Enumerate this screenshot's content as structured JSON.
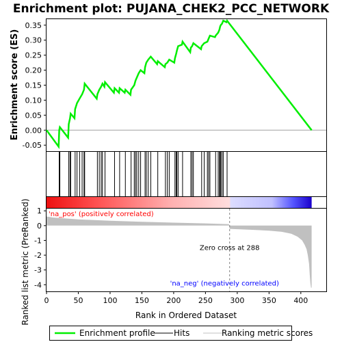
{
  "chart_data": {
    "type": "line",
    "title": "Enrichment plot: PUJANA_CHEK2_PCC_NETWORK",
    "es_panel": {
      "ylabel": "Enrichment score (ES)",
      "ylim": [
        -0.07,
        0.37
      ],
      "yticks": [
        "0.35",
        "0.30",
        "0.25",
        "0.20",
        "0.15",
        "0.10",
        "0.05",
        "0.00",
        "-0.05"
      ],
      "ytick_values": [
        0.35,
        0.3,
        0.25,
        0.2,
        0.15,
        0.1,
        0.05,
        0.0,
        -0.05
      ]
    },
    "metric_panel": {
      "ylabel": "Ranked list metric (PreRanked)",
      "ylim": [
        -4.45,
        1.15
      ],
      "yticks": [
        "1",
        "0",
        "-1",
        "-2",
        "-3",
        "-4"
      ],
      "ytick_values": [
        1,
        0,
        -1,
        -2,
        -3,
        -4
      ],
      "zero_cross_label": "Zero cross at 288",
      "zero_cross": 288,
      "pos_label": "'na_pos' (positively correlated)",
      "neg_label": "'na_neg' (negatively correlated)"
    },
    "xlabel": "Rank in Ordered Dataset",
    "xlim": [
      0,
      440
    ],
    "xticks": [
      "0",
      "50",
      "100",
      "150",
      "200",
      "250",
      "300",
      "350",
      "400"
    ],
    "xtick_values": [
      0,
      50,
      100,
      150,
      200,
      250,
      300,
      350,
      400
    ],
    "n_genes": 417,
    "hits": [
      20,
      21,
      35,
      37,
      38,
      45,
      48,
      52,
      56,
      59,
      60,
      80,
      83,
      86,
      88,
      92,
      107,
      115,
      124,
      133,
      138,
      140,
      142,
      145,
      148,
      155,
      157,
      160,
      164,
      175,
      187,
      190,
      193,
      202,
      204,
      205,
      207,
      214,
      227,
      229,
      231,
      244,
      248,
      253,
      255,
      257,
      266,
      270,
      272,
      273,
      274,
      276,
      278,
      284
    ],
    "es_curve": [
      [
        0,
        0.0
      ],
      [
        19,
        -0.055
      ],
      [
        20,
        0.0
      ],
      [
        21,
        0.01
      ],
      [
        34,
        -0.025
      ],
      [
        35,
        0.02
      ],
      [
        37,
        0.04
      ],
      [
        38,
        0.055
      ],
      [
        44,
        0.04
      ],
      [
        45,
        0.07
      ],
      [
        48,
        0.09
      ],
      [
        52,
        0.105
      ],
      [
        56,
        0.12
      ],
      [
        59,
        0.135
      ],
      [
        60,
        0.155
      ],
      [
        79,
        0.105
      ],
      [
        80,
        0.12
      ],
      [
        83,
        0.135
      ],
      [
        86,
        0.145
      ],
      [
        88,
        0.155
      ],
      [
        91,
        0.145
      ],
      [
        92,
        0.16
      ],
      [
        106,
        0.125
      ],
      [
        107,
        0.14
      ],
      [
        114,
        0.125
      ],
      [
        115,
        0.14
      ],
      [
        123,
        0.125
      ],
      [
        124,
        0.135
      ],
      [
        132,
        0.118
      ],
      [
        133,
        0.135
      ],
      [
        138,
        0.15
      ],
      [
        140,
        0.165
      ],
      [
        142,
        0.175
      ],
      [
        145,
        0.19
      ],
      [
        148,
        0.2
      ],
      [
        154,
        0.19
      ],
      [
        155,
        0.21
      ],
      [
        157,
        0.225
      ],
      [
        160,
        0.235
      ],
      [
        164,
        0.245
      ],
      [
        174,
        0.22
      ],
      [
        175,
        0.23
      ],
      [
        186,
        0.21
      ],
      [
        187,
        0.22
      ],
      [
        190,
        0.225
      ],
      [
        193,
        0.235
      ],
      [
        201,
        0.225
      ],
      [
        202,
        0.24
      ],
      [
        204,
        0.255
      ],
      [
        205,
        0.265
      ],
      [
        207,
        0.28
      ],
      [
        213,
        0.285
      ],
      [
        214,
        0.295
      ],
      [
        226,
        0.26
      ],
      [
        227,
        0.275
      ],
      [
        229,
        0.28
      ],
      [
        231,
        0.29
      ],
      [
        243,
        0.27
      ],
      [
        244,
        0.28
      ],
      [
        248,
        0.29
      ],
      [
        253,
        0.295
      ],
      [
        255,
        0.305
      ],
      [
        257,
        0.315
      ],
      [
        265,
        0.31
      ],
      [
        266,
        0.315
      ],
      [
        270,
        0.325
      ],
      [
        272,
        0.335
      ],
      [
        273,
        0.345
      ],
      [
        274,
        0.35
      ],
      [
        276,
        0.355
      ],
      [
        278,
        0.365
      ],
      [
        283,
        0.36
      ],
      [
        284,
        0.365
      ],
      [
        417,
        0.0
      ]
    ],
    "metric_profile": [
      [
        0,
        0.62
      ],
      [
        10,
        0.55
      ],
      [
        50,
        0.42
      ],
      [
        100,
        0.33
      ],
      [
        150,
        0.26
      ],
      [
        200,
        0.2
      ],
      [
        250,
        0.15
      ],
      [
        287,
        0.1
      ],
      [
        288,
        -0.22
      ],
      [
        320,
        -0.28
      ],
      [
        350,
        -0.34
      ],
      [
        370,
        -0.42
      ],
      [
        385,
        -0.55
      ],
      [
        395,
        -0.75
      ],
      [
        402,
        -1.0
      ],
      [
        406,
        -1.3
      ],
      [
        409,
        -1.6
      ],
      [
        411,
        -2.0
      ],
      [
        413,
        -2.6
      ],
      [
        414,
        -3.3
      ],
      [
        415,
        -3.9
      ],
      [
        416,
        -4.2
      ],
      [
        417,
        -4.2
      ]
    ],
    "legend": [
      "Enrichment profile",
      "Hits",
      "Ranking metric scores"
    ],
    "colors": {
      "es_line": "#00ee00",
      "hit": "#000000",
      "metric_fill": "#c0c0c0",
      "zero_line": "#808080",
      "pos_text": "#ff0000",
      "neg_text": "#0000ff"
    }
  }
}
